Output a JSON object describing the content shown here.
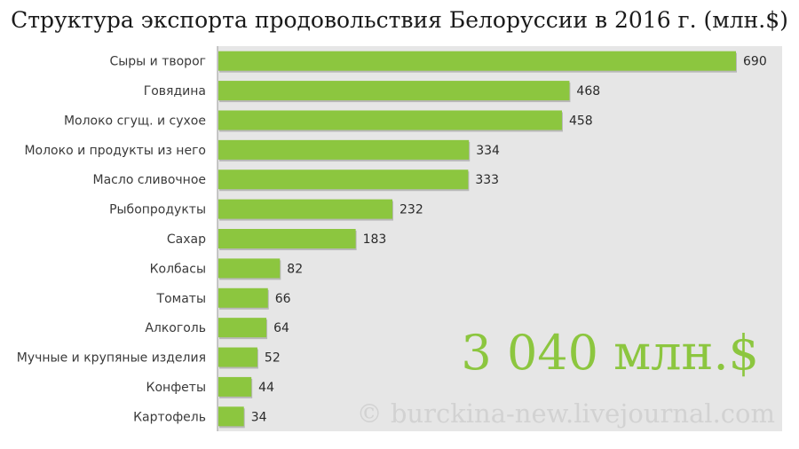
{
  "title": "Структура экспорта продовольствия Белоруссии в 2016 г. (млн.$)",
  "total_label": "3 040 млн.$",
  "watermark": "© burckina-new.livejournal.com",
  "colors": {
    "bar": "#8cc63f",
    "plot_bg": "#e6e6e6",
    "axis": "#9a9a9a",
    "total": "#8cc63f"
  },
  "chart_data": {
    "type": "bar",
    "orientation": "horizontal",
    "title": "Структура экспорта продовольствия Белоруссии в 2016 г. (млн.$)",
    "categories": [
      "Сыры и творог",
      "Говядина",
      "Молоко сгущ. и сухое",
      "Молоко и продукты из него",
      "Масло сливочное",
      "Рыбопродукты",
      "Сахар",
      "Колбасы",
      "Томаты",
      "Алкоголь",
      "Мучные и крупяные изделия",
      "Конфеты",
      "Картофель"
    ],
    "values": [
      690,
      468,
      458,
      334,
      333,
      232,
      183,
      82,
      66,
      64,
      52,
      44,
      34
    ],
    "xlim": [
      0,
      760
    ],
    "grid": false,
    "legend": "none"
  }
}
